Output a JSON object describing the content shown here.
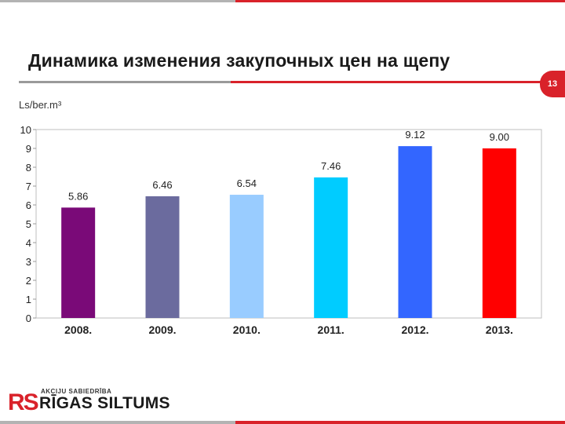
{
  "slide": {
    "title": "Динамика изменения закупочных цен на щепу",
    "page_number": "13"
  },
  "logo": {
    "mark": "RS",
    "small_text": "AKCIJU SABIEDRĪBA",
    "big_text": "RĪGAS SILTUMS"
  },
  "colors": {
    "accent_red": "#d9222a",
    "gray": "#b3b3b3"
  },
  "chart_data": {
    "type": "bar",
    "ylabel": "Ls/ber.m³",
    "categories": [
      "2008.",
      "2009.",
      "2010.",
      "2011.",
      "2012.",
      "2013."
    ],
    "values": [
      5.86,
      6.46,
      6.54,
      7.46,
      9.12,
      9.0
    ],
    "value_labels": [
      "5.86",
      "6.46",
      "6.54",
      "7.46",
      "9.12",
      "9.00"
    ],
    "bar_colors": [
      "#7a0a78",
      "#6b6b9e",
      "#99ccff",
      "#00ccff",
      "#3366ff",
      "#ff0000"
    ],
    "ylim": [
      0,
      10
    ],
    "yticks": [
      0,
      1,
      2,
      3,
      4,
      5,
      6,
      7,
      8,
      9,
      10
    ],
    "grid": false,
    "legend": "none"
  }
}
